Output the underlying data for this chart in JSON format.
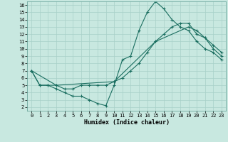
{
  "xlabel": "Humidex (Indice chaleur)",
  "bg_color": "#c8e8e0",
  "grid_color": "#a8d0c8",
  "line_color": "#1a6e60",
  "xlim": [
    -0.5,
    23.5
  ],
  "ylim": [
    1.5,
    16.5
  ],
  "xticks": [
    0,
    1,
    2,
    3,
    4,
    5,
    6,
    7,
    8,
    9,
    10,
    11,
    12,
    13,
    14,
    15,
    16,
    17,
    18,
    19,
    20,
    21,
    22,
    23
  ],
  "yticks": [
    2,
    3,
    4,
    5,
    6,
    7,
    8,
    9,
    10,
    11,
    12,
    13,
    14,
    15,
    16
  ],
  "line1_x": [
    0,
    1,
    2,
    3,
    4,
    5,
    6,
    7,
    8,
    9,
    10,
    11,
    12,
    13,
    14,
    15,
    16,
    17,
    18,
    19,
    20,
    21,
    22,
    23
  ],
  "line1_y": [
    7,
    5,
    5,
    4.5,
    4,
    3.5,
    3.5,
    3,
    2.5,
    2.2,
    5,
    8.5,
    9,
    12.5,
    15,
    16.5,
    15.5,
    14,
    13,
    12.5,
    11,
    10,
    9.5,
    8.5
  ],
  "line2_x": [
    0,
    3,
    10,
    15,
    19,
    20,
    21,
    22,
    23
  ],
  "line2_y": [
    7,
    5,
    5.5,
    11,
    13,
    12.5,
    11.5,
    10.5,
    9.5
  ],
  "line3_x": [
    0,
    1,
    2,
    3,
    4,
    5,
    6,
    7,
    8,
    9,
    10,
    11,
    12,
    13,
    14,
    15,
    16,
    17,
    18,
    19,
    20,
    21,
    22,
    23
  ],
  "line3_y": [
    7,
    5,
    5,
    5,
    4.5,
    4.5,
    5,
    5,
    5,
    5,
    5.5,
    6,
    7,
    8,
    9.5,
    11,
    12,
    13,
    13.5,
    13.5,
    12,
    11.5,
    10,
    9
  ]
}
